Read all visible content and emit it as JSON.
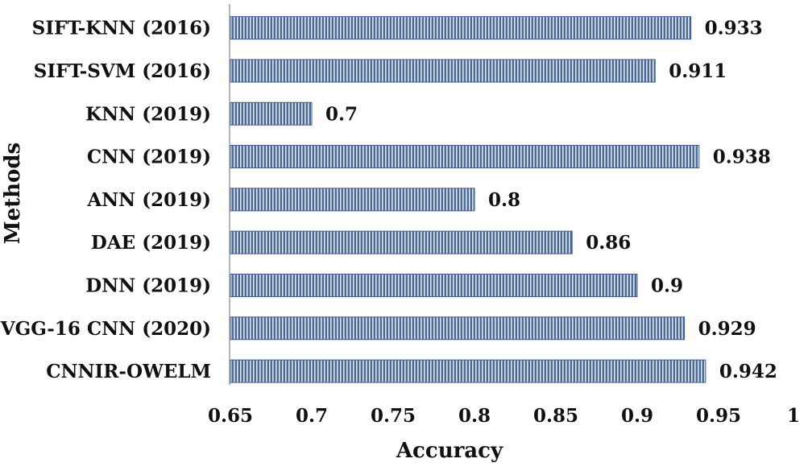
{
  "chart_data": {
    "type": "bar",
    "orientation": "horizontal",
    "categories": [
      "SIFT-KNN (2016)",
      "SIFT-SVM (2016)",
      "KNN (2019)",
      "CNN (2019)",
      "ANN (2019)",
      "DAE (2019)",
      "DNN (2019)",
      "VGG-16 CNN (2020)",
      "CNNIR-OWELM"
    ],
    "values": [
      0.933,
      0.911,
      0.7,
      0.938,
      0.8,
      0.86,
      0.9,
      0.929,
      0.942
    ],
    "data_labels": [
      "0.933",
      "0.911",
      "0.7",
      "0.938",
      "0.8",
      "0.86",
      "0.9",
      "0.929",
      "0.942"
    ],
    "xlabel": "Accuracy",
    "ylabel": "Methods",
    "xlim": [
      0.65,
      1
    ],
    "xticks": [
      0.65,
      0.7,
      0.75,
      0.8,
      0.85,
      0.9,
      0.95,
      1
    ],
    "xtick_labels": [
      "0.65",
      "0.7",
      "0.75",
      "0.8",
      "0.85",
      "0.9",
      "0.95",
      "1"
    ],
    "grid": false,
    "bar_color": "#4a6a9b",
    "bar_stripe_color": "#dfe6f0"
  }
}
